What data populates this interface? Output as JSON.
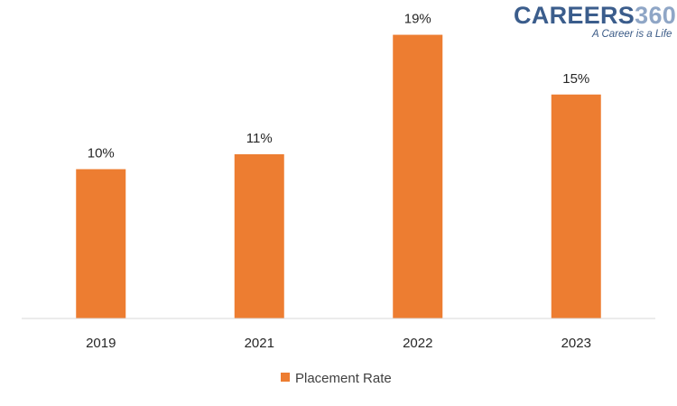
{
  "brand": {
    "name_part1": "CAREERS",
    "name_part2": "360",
    "tagline": "A Career is a Life",
    "color_part1": "#3b5d8c",
    "color_part2": "#8fa6c6"
  },
  "chart_data": {
    "type": "bar",
    "categories": [
      "2019",
      "2021",
      "2022",
      "2023"
    ],
    "series": [
      {
        "name": "Placement Rate",
        "values": [
          10,
          11,
          19,
          15
        ],
        "color": "#ed7d31"
      }
    ],
    "data_labels": [
      "10%",
      "11%",
      "19%",
      "15%"
    ],
    "ylim": [
      0,
      20
    ],
    "grid": false,
    "legend": "bottom",
    "title": "",
    "xlabel": "",
    "ylabel": ""
  }
}
